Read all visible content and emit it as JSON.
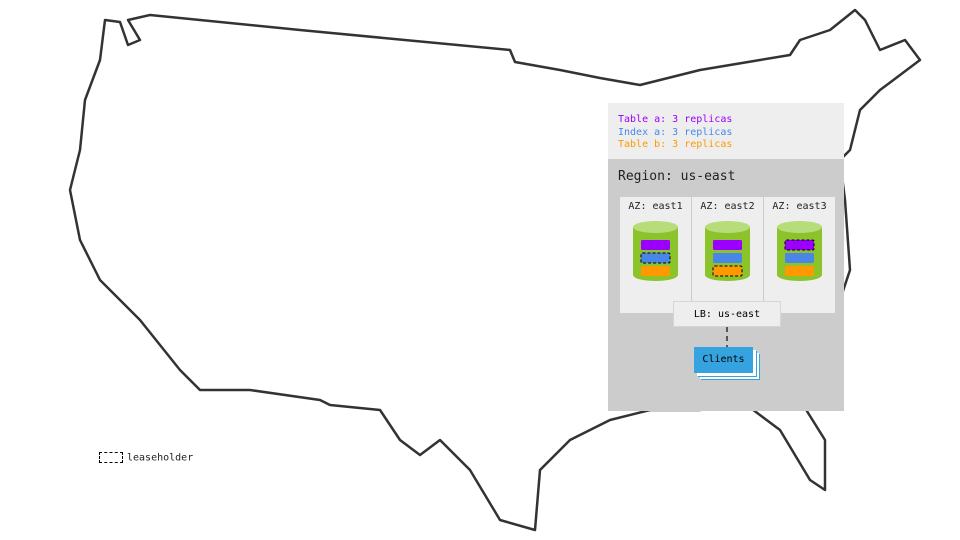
{
  "legend": [
    {
      "text": "Table a: 3 replicas",
      "color": "#9b00ff"
    },
    {
      "text": "Index a: 3 replicas",
      "color": "#4a86e8"
    },
    {
      "text": "Table b: 3 replicas",
      "color": "#ff9900"
    }
  ],
  "region": {
    "title": "Region: us-east"
  },
  "zones": [
    {
      "label": "AZ: east1",
      "leaseholder": "index-a"
    },
    {
      "label": "AZ: east2",
      "leaseholder": "table-b"
    },
    {
      "label": "AZ: east3",
      "leaseholder": "table-a"
    }
  ],
  "lb": "LB: us-east",
  "clients": "Clients",
  "leaseholder_legend": "leaseholder",
  "colors": {
    "db": "#8cc22a",
    "db_top": "#b6dd79",
    "region": "#cccccc",
    "panel": "#eeeeee",
    "clients": "#35a3df"
  }
}
